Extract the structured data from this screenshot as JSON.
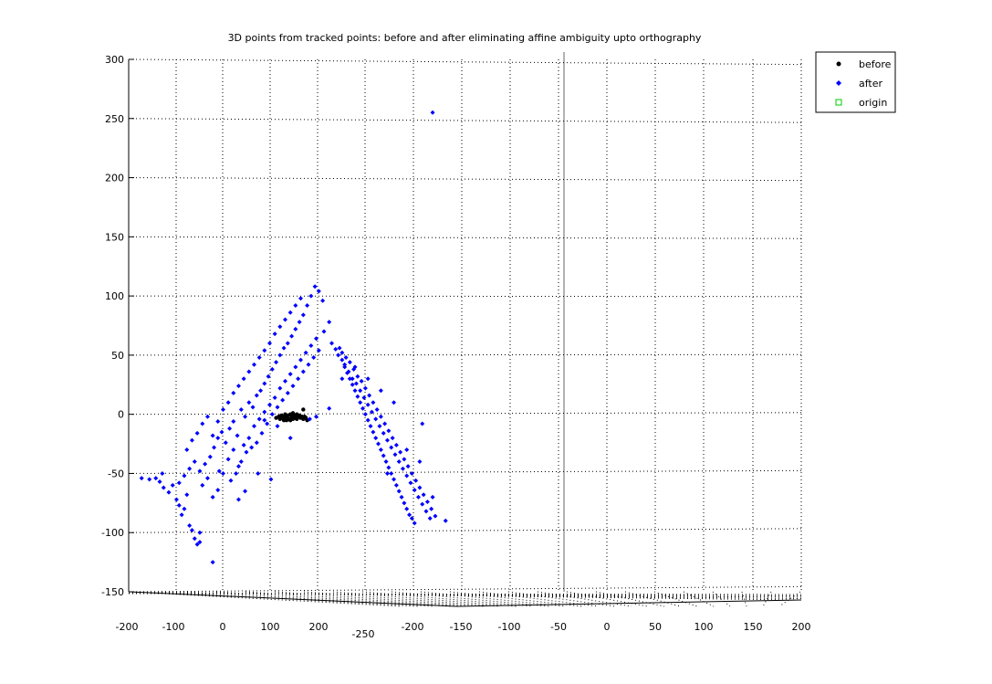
{
  "chart_data": {
    "type": "scatter",
    "title": "3D points from tracked points: before and after eliminating affine ambiguity upto orthography",
    "xlabel": "",
    "ylabel": "",
    "zlim": [
      -150,
      300
    ],
    "z_ticks": [
      "300",
      "250",
      "200",
      "150",
      "100",
      "50",
      "0",
      "-50",
      "-100",
      "-150"
    ],
    "x_ticks": [
      "-200",
      "-100",
      "0",
      "100",
      "200"
    ],
    "y_ticks": [
      "-250",
      "-200",
      "-150",
      "-100",
      "-50",
      "0",
      "50",
      "100",
      "150",
      "200"
    ],
    "grid": true,
    "legend_position": "top-right",
    "series": [
      {
        "name": "before",
        "color": "#000000",
        "marker": "point",
        "points": [
          [
            -161,
            -3
          ],
          [
            -159,
            -2
          ],
          [
            -158,
            -4
          ],
          [
            -157,
            -1
          ],
          [
            -156,
            -3
          ],
          [
            -155,
            -2
          ],
          [
            -154,
            0
          ],
          [
            -153,
            -3
          ],
          [
            -152,
            -1
          ],
          [
            -151,
            -4
          ],
          [
            -150,
            0
          ],
          [
            -149,
            -2
          ],
          [
            -148,
            1
          ],
          [
            -147,
            -1
          ],
          [
            -146,
            -3
          ],
          [
            -145,
            0
          ],
          [
            -144,
            -2
          ],
          [
            -143,
            -1
          ],
          [
            -142,
            -3
          ],
          [
            -141,
            -2
          ],
          [
            -140,
            -4
          ],
          [
            -139,
            -2
          ],
          [
            -138,
            -3
          ],
          [
            -137,
            -5
          ],
          [
            -140,
            4
          ],
          [
            -150,
            -5
          ],
          [
            -148,
            -4
          ],
          [
            -153,
            -5
          ],
          [
            -145,
            -4
          ],
          [
            -155,
            -5
          ]
        ]
      },
      {
        "name": "after",
        "color": "#0000ff",
        "marker": "diamond",
        "points": [
          [
            -265,
            -54
          ],
          [
            -259,
            -55
          ],
          [
            -254,
            -54
          ],
          [
            -251,
            -57
          ],
          [
            -249,
            -50
          ],
          [
            -248,
            -62
          ],
          [
            -244,
            -66
          ],
          [
            -241,
            -60
          ],
          [
            -238,
            -72
          ],
          [
            -236,
            -77
          ],
          [
            -234,
            -85
          ],
          [
            -232,
            -80
          ],
          [
            -230,
            -68
          ],
          [
            -228,
            -94
          ],
          [
            -226,
            -98
          ],
          [
            -224,
            -105
          ],
          [
            -222,
            -110
          ],
          [
            -220,
            -108
          ],
          [
            -236,
            -58
          ],
          [
            -232,
            -52
          ],
          [
            -228,
            -46
          ],
          [
            -224,
            -40
          ],
          [
            -220,
            -48
          ],
          [
            -216,
            -42
          ],
          [
            -212,
            -36
          ],
          [
            -209,
            -28
          ],
          [
            -206,
            -20
          ],
          [
            -203,
            -15
          ],
          [
            -200,
            -24
          ],
          [
            -197,
            -12
          ],
          [
            -194,
            -6
          ],
          [
            -191,
            -18
          ],
          [
            -188,
            4
          ],
          [
            -185,
            -2
          ],
          [
            -182,
            10
          ],
          [
            -179,
            6
          ],
          [
            -176,
            16
          ],
          [
            -173,
            20
          ],
          [
            -170,
            26
          ],
          [
            -167,
            32
          ],
          [
            -164,
            38
          ],
          [
            -161,
            44
          ],
          [
            -158,
            50
          ],
          [
            -155,
            56
          ],
          [
            -152,
            60
          ],
          [
            -149,
            66
          ],
          [
            -146,
            72
          ],
          [
            -143,
            78
          ],
          [
            -140,
            84
          ],
          [
            -137,
            92
          ],
          [
            -134,
            100
          ],
          [
            -131,
            108
          ],
          [
            -128,
            104
          ],
          [
            -125,
            96
          ],
          [
            -230,
            -30
          ],
          [
            -226,
            -22
          ],
          [
            -222,
            -16
          ],
          [
            -218,
            -8
          ],
          [
            -214,
            -2
          ],
          [
            -210,
            -18
          ],
          [
            -206,
            -6
          ],
          [
            -202,
            4
          ],
          [
            -198,
            10
          ],
          [
            -194,
            18
          ],
          [
            -190,
            24
          ],
          [
            -186,
            30
          ],
          [
            -182,
            36
          ],
          [
            -178,
            42
          ],
          [
            -174,
            48
          ],
          [
            -170,
            54
          ],
          [
            -166,
            60
          ],
          [
            -162,
            68
          ],
          [
            -158,
            74
          ],
          [
            -154,
            80
          ],
          [
            -150,
            86
          ],
          [
            -146,
            92
          ],
          [
            -142,
            98
          ],
          [
            -218,
            -60
          ],
          [
            -214,
            -54
          ],
          [
            -210,
            -70
          ],
          [
            -206,
            -64
          ],
          [
            -202,
            -50
          ],
          [
            -198,
            -38
          ],
          [
            -194,
            -30
          ],
          [
            -190,
            -44
          ],
          [
            -186,
            -26
          ],
          [
            -182,
            -20
          ],
          [
            -178,
            -10
          ],
          [
            -174,
            -4
          ],
          [
            -170,
            2
          ],
          [
            -166,
            8
          ],
          [
            -162,
            14
          ],
          [
            -158,
            22
          ],
          [
            -154,
            28
          ],
          [
            -150,
            34
          ],
          [
            -146,
            40
          ],
          [
            -142,
            46
          ],
          [
            -138,
            52
          ],
          [
            -134,
            58
          ],
          [
            -130,
            64
          ],
          [
            -196,
            -56
          ],
          [
            -192,
            -50
          ],
          [
            -188,
            -40
          ],
          [
            -184,
            -32
          ],
          [
            -180,
            -28
          ],
          [
            -176,
            -24
          ],
          [
            -172,
            -16
          ],
          [
            -168,
            -8
          ],
          [
            -164,
            0
          ],
          [
            -160,
            6
          ],
          [
            -156,
            12
          ],
          [
            -152,
            18
          ],
          [
            -148,
            24
          ],
          [
            -144,
            30
          ],
          [
            -140,
            36
          ],
          [
            -136,
            42
          ],
          [
            -132,
            48
          ],
          [
            -128,
            54
          ],
          [
            -124,
            70
          ],
          [
            -120,
            78
          ],
          [
            -118,
            60
          ],
          [
            -115,
            55
          ],
          [
            -113,
            50
          ],
          [
            -110,
            46
          ],
          [
            -108,
            40
          ],
          [
            -106,
            35
          ],
          [
            -104,
            30
          ],
          [
            -102,
            25
          ],
          [
            -100,
            20
          ],
          [
            -98,
            15
          ],
          [
            -96,
            10
          ],
          [
            -94,
            5
          ],
          [
            -92,
            0
          ],
          [
            -90,
            -5
          ],
          [
            -88,
            -10
          ],
          [
            -86,
            -15
          ],
          [
            -84,
            -20
          ],
          [
            -82,
            -25
          ],
          [
            -80,
            -30
          ],
          [
            -78,
            -35
          ],
          [
            -76,
            -40
          ],
          [
            -74,
            -45
          ],
          [
            -72,
            -50
          ],
          [
            -70,
            -55
          ],
          [
            -68,
            -60
          ],
          [
            -66,
            -65
          ],
          [
            -64,
            -70
          ],
          [
            -62,
            -75
          ],
          [
            -60,
            -80
          ],
          [
            -58,
            -85
          ],
          [
            -56,
            -88
          ],
          [
            -54,
            -92
          ],
          [
            -112,
            56
          ],
          [
            -110,
            52
          ],
          [
            -107,
            48
          ],
          [
            -104,
            44
          ],
          [
            -101,
            38
          ],
          [
            -98,
            32
          ],
          [
            -95,
            28
          ],
          [
            -92,
            22
          ],
          [
            -89,
            16
          ],
          [
            -86,
            10
          ],
          [
            -83,
            4
          ],
          [
            -80,
            -2
          ],
          [
            -77,
            -8
          ],
          [
            -74,
            -14
          ],
          [
            -71,
            -20
          ],
          [
            -68,
            -26
          ],
          [
            -65,
            -32
          ],
          [
            -62,
            -38
          ],
          [
            -59,
            -44
          ],
          [
            -56,
            -50
          ],
          [
            -53,
            -56
          ],
          [
            -50,
            -62
          ],
          [
            -47,
            -68
          ],
          [
            -44,
            -74
          ],
          [
            -41,
            -80
          ],
          [
            -38,
            -86
          ],
          [
            -108,
            42
          ],
          [
            -105,
            36
          ],
          [
            -102,
            30
          ],
          [
            -99,
            26
          ],
          [
            -96,
            20
          ],
          [
            -93,
            14
          ],
          [
            -90,
            8
          ],
          [
            -87,
            2
          ],
          [
            -84,
            -4
          ],
          [
            -81,
            -10
          ],
          [
            -78,
            -16
          ],
          [
            -75,
            -22
          ],
          [
            -72,
            -28
          ],
          [
            -69,
            -34
          ],
          [
            -66,
            -40
          ],
          [
            -63,
            -46
          ],
          [
            -60,
            -52
          ],
          [
            -57,
            -58
          ],
          [
            -54,
            -64
          ],
          [
            -51,
            -70
          ],
          [
            -48,
            -76
          ],
          [
            -45,
            -82
          ],
          [
            -42,
            -88
          ],
          [
            -110,
            30
          ],
          [
            -100,
            40
          ],
          [
            -90,
            30
          ],
          [
            -80,
            20
          ],
          [
            -70,
            10
          ],
          [
            -60,
            -30
          ],
          [
            -50,
            -40
          ],
          [
            -40,
            -70
          ],
          [
            -75,
            -50
          ],
          [
            -30,
            -90
          ],
          [
            -48,
            -8
          ],
          [
            -160,
            -10
          ],
          [
            -170,
            -5
          ],
          [
            -150,
            -20
          ],
          [
            -175,
            -50
          ],
          [
            -185,
            -65
          ],
          [
            -190,
            -72
          ],
          [
            -210,
            -125
          ],
          [
            -120,
            5
          ],
          [
            -130,
            -2
          ],
          [
            -205,
            -48
          ],
          [
            -135,
            -4
          ],
          [
            -165,
            -55
          ],
          [
            -220,
            -100
          ],
          [
            -40,
            255
          ]
        ]
      },
      {
        "name": "origin",
        "color": "#00cc00",
        "marker": "square",
        "points": []
      }
    ]
  }
}
